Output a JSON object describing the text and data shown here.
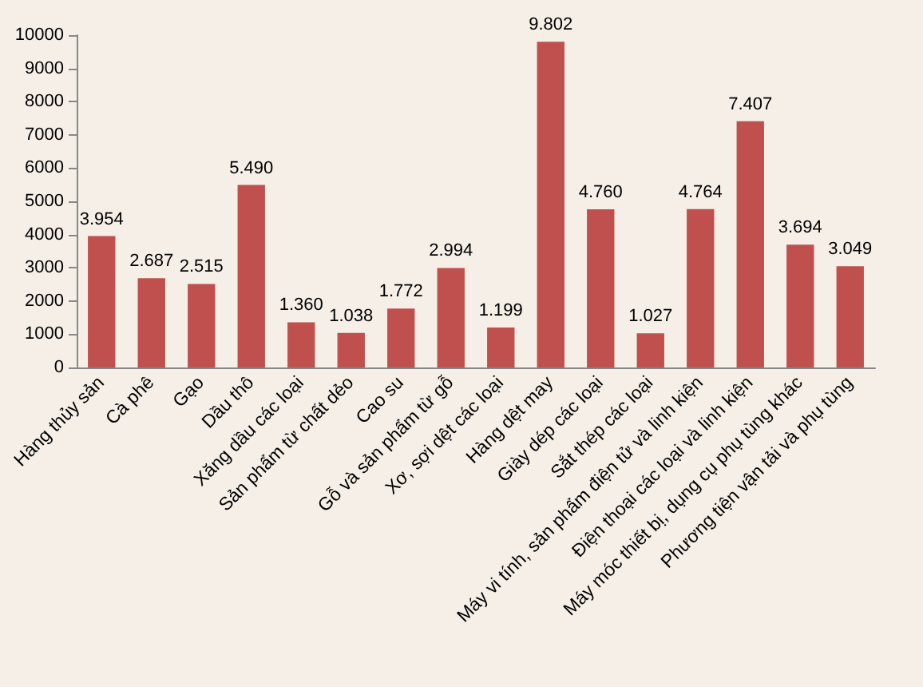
{
  "chart_data": {
    "type": "bar",
    "categories": [
      "Hàng thủy sản",
      "Cà phê",
      "Gạo",
      "Dầu thô",
      "Xăng dầu các loại",
      "Sản phẩm từ chất dẻo",
      "Cao su",
      "Gỗ và sản phẩm từ gỗ",
      "Xơ, sợi dệt các loại",
      "Hàng dệt may",
      "Giày dép các loại",
      "Sắt thép các loại",
      "Máy vi tính, sản phẩm điện tử và linh kiện",
      "Điện thoại các loại và linh kiện",
      "Máy móc thiết bị, dụng cụ phụ tùng khác",
      "Phương tiện vận tải và phụ tùng"
    ],
    "values": [
      3954,
      2687,
      2515,
      5490,
      1360,
      1038,
      1772,
      2994,
      1199,
      9802,
      4760,
      1027,
      4764,
      7407,
      3694,
      3049
    ],
    "value_labels": [
      "3.954",
      "2.687",
      "2.515",
      "5.490",
      "1.360",
      "1.038",
      "1.772",
      "2.994",
      "1.199",
      "9.802",
      "4.760",
      "1.027",
      "4.764",
      "7.407",
      "3.694",
      "3.049"
    ],
    "color": "#c0504d",
    "ylim": [
      0,
      10000
    ],
    "yticks": [
      0,
      1000,
      2000,
      3000,
      4000,
      5000,
      6000,
      7000,
      8000,
      9000,
      10000
    ],
    "grid": false
  }
}
